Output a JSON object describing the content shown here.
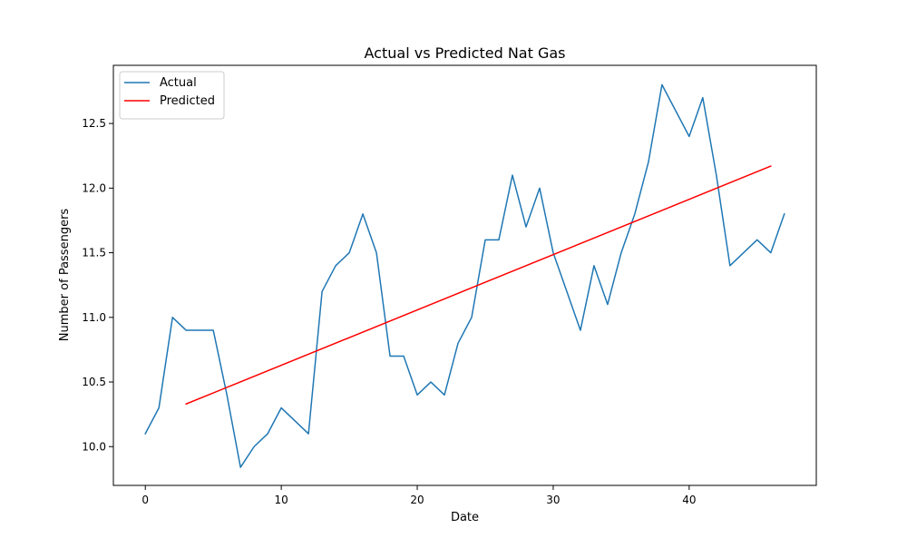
{
  "chart_data": {
    "type": "line",
    "title": "Actual vs Predicted Nat Gas",
    "xlabel": "Date",
    "ylabel": "Number of Passengers",
    "xlim": [
      -2.35,
      49.35
    ],
    "ylim": [
      9.7,
      12.95
    ],
    "x_ticks": [
      0,
      10,
      20,
      30,
      40
    ],
    "y_ticks": [
      10.0,
      10.5,
      11.0,
      11.5,
      12.0,
      12.5
    ],
    "y_tick_labels": [
      "10.0",
      "10.5",
      "11.0",
      "11.5",
      "12.0",
      "12.5"
    ],
    "grid": false,
    "legend_position": "top-left",
    "series": [
      {
        "name": "Actual",
        "color": "#1f77b4",
        "x": [
          0,
          1,
          2,
          3,
          4,
          5,
          6,
          7,
          8,
          9,
          10,
          11,
          12,
          13,
          14,
          15,
          16,
          17,
          18,
          19,
          20,
          21,
          22,
          23,
          24,
          25,
          26,
          27,
          28,
          29,
          30,
          31,
          32,
          33,
          34,
          35,
          36,
          37,
          38,
          39,
          40,
          41,
          42,
          43,
          44,
          45,
          46,
          47
        ],
        "y": [
          10.1,
          10.3,
          11.0,
          10.9,
          10.9,
          10.9,
          10.4,
          9.84,
          10.0,
          10.1,
          10.3,
          10.2,
          10.1,
          11.2,
          11.4,
          11.5,
          11.8,
          11.5,
          10.7,
          10.7,
          10.4,
          10.5,
          10.4,
          10.8,
          11.0,
          11.6,
          11.6,
          12.1,
          11.7,
          12.0,
          11.5,
          11.2,
          10.9,
          11.4,
          11.1,
          11.5,
          11.8,
          12.2,
          12.8,
          12.6,
          12.4,
          12.7,
          12.1,
          11.4,
          11.5,
          11.6,
          11.5,
          11.8
        ]
      },
      {
        "name": "Predicted",
        "color": "#ff0000",
        "x": [
          3,
          46
        ],
        "y": [
          10.33,
          12.17
        ]
      }
    ]
  }
}
